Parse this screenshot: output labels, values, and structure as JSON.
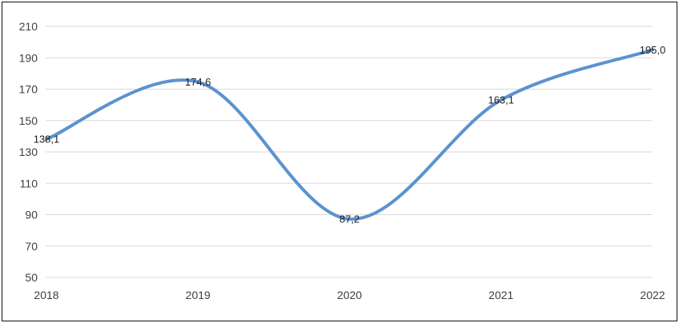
{
  "chart_data": {
    "type": "line",
    "title": "",
    "xlabel": "",
    "ylabel": "",
    "x": [
      "2018",
      "2019",
      "2020",
      "2021",
      "2022"
    ],
    "series": [
      {
        "name": "",
        "values": [
          138.1,
          174.6,
          87.2,
          163.1,
          195.0
        ],
        "labels": [
          "138,1",
          "174,6",
          "87,2",
          "163,1",
          "195,0"
        ]
      }
    ],
    "ylim": [
      50,
      210
    ],
    "yticks": [
      50,
      70,
      90,
      110,
      130,
      150,
      170,
      190,
      210
    ],
    "grid": "horizontal",
    "legend": "none",
    "smooth": true,
    "colors": {
      "line": "#5b93ce",
      "grid": "#d9d9d9",
      "axis_text": "#3f3f3f",
      "data_label_text": "#1f1f1f",
      "frame_border": "#111111",
      "background": "#ffffff"
    }
  }
}
